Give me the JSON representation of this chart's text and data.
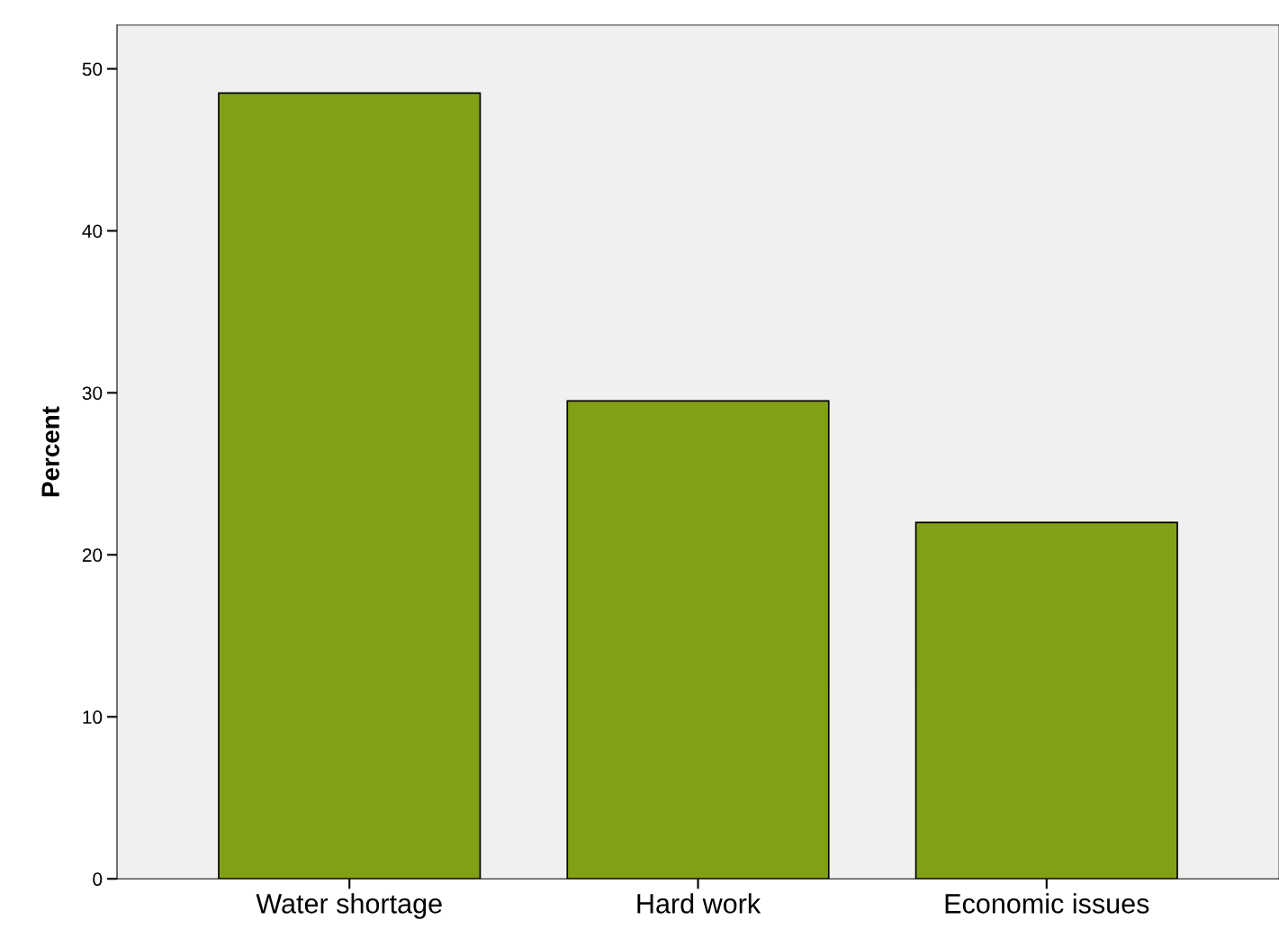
{
  "chart_data": {
    "type": "bar",
    "ylabel": "Percent",
    "categories": [
      "Water shortage",
      "Hard work",
      "Economic issues"
    ],
    "values": [
      48.5,
      29.5,
      22.0
    ],
    "color": "#82a015",
    "ylim": [
      0,
      52.7
    ],
    "yticks": [
      0,
      10,
      20,
      30,
      40,
      50
    ],
    "grid": false,
    "legend": false
  }
}
